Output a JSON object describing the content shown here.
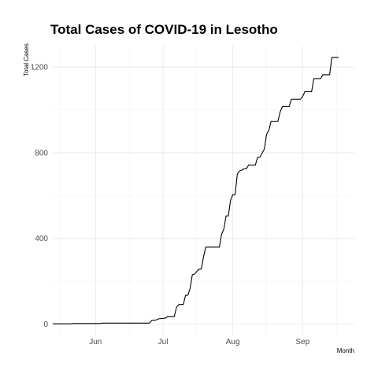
{
  "chart_data": {
    "type": "line",
    "title": "Total Cases of COVID-19 in Lesotho",
    "xlabel": "Month",
    "ylabel": "Total Cases",
    "grid": true,
    "legend": "none",
    "x_range": [
      "2020-05-13",
      "2020-09-24"
    ],
    "ylim": [
      -50,
      1300
    ],
    "y_ticks": [
      0,
      400,
      800,
      1200
    ],
    "x_ticks": [
      {
        "date": "2020-06-01",
        "label": "Jun"
      },
      {
        "date": "2020-07-01",
        "label": "Jul"
      },
      {
        "date": "2020-08-01",
        "label": "Aug"
      },
      {
        "date": "2020-09-01",
        "label": "Sep"
      }
    ],
    "x_minor_ticks": [
      "2020-05-16",
      "2020-06-16",
      "2020-07-16",
      "2020-08-16",
      "2020-09-16"
    ],
    "y_minor_ticks": [
      200,
      600,
      1000
    ],
    "series": [
      {
        "color": "#000000",
        "step": true,
        "points": [
          [
            "2020-05-13",
            1
          ],
          [
            "2020-05-21",
            1
          ],
          [
            "2020-05-22",
            2
          ],
          [
            "2020-06-03",
            2
          ],
          [
            "2020-06-04",
            4
          ],
          [
            "2020-06-25",
            4
          ],
          [
            "2020-06-26",
            17
          ],
          [
            "2020-06-28",
            19
          ],
          [
            "2020-06-29",
            24
          ],
          [
            "2020-07-02",
            27
          ],
          [
            "2020-07-03",
            35
          ],
          [
            "2020-07-06",
            35
          ],
          [
            "2020-07-07",
            79
          ],
          [
            "2020-07-08",
            91
          ],
          [
            "2020-07-10",
            91
          ],
          [
            "2020-07-11",
            134
          ],
          [
            "2020-07-12",
            134
          ],
          [
            "2020-07-13",
            165
          ],
          [
            "2020-07-14",
            230
          ],
          [
            "2020-07-15",
            233
          ],
          [
            "2020-07-16",
            245
          ],
          [
            "2020-07-17",
            256
          ],
          [
            "2020-07-18",
            256
          ],
          [
            "2020-07-19",
            315
          ],
          [
            "2020-07-20",
            359
          ],
          [
            "2020-07-21",
            359
          ],
          [
            "2020-07-26",
            359
          ],
          [
            "2020-07-27",
            419
          ],
          [
            "2020-07-28",
            443
          ],
          [
            "2020-07-29",
            505
          ],
          [
            "2020-07-30",
            505
          ],
          [
            "2020-07-31",
            578
          ],
          [
            "2020-08-01",
            604
          ],
          [
            "2020-08-02",
            604
          ],
          [
            "2020-08-03",
            701
          ],
          [
            "2020-08-04",
            715
          ],
          [
            "2020-08-05",
            719
          ],
          [
            "2020-08-06",
            725
          ],
          [
            "2020-08-07",
            725
          ],
          [
            "2020-08-08",
            742
          ],
          [
            "2020-08-11",
            742
          ],
          [
            "2020-08-12",
            779
          ],
          [
            "2020-08-13",
            779
          ],
          [
            "2020-08-14",
            798
          ],
          [
            "2020-08-15",
            817
          ],
          [
            "2020-08-16",
            886
          ],
          [
            "2020-08-17",
            905
          ],
          [
            "2020-08-18",
            946
          ],
          [
            "2020-08-21",
            946
          ],
          [
            "2020-08-22",
            990
          ],
          [
            "2020-08-23",
            1015
          ],
          [
            "2020-08-26",
            1015
          ],
          [
            "2020-08-27",
            1049
          ],
          [
            "2020-08-31",
            1049
          ],
          [
            "2020-09-01",
            1062
          ],
          [
            "2020-09-02",
            1085
          ],
          [
            "2020-09-05",
            1085
          ],
          [
            "2020-09-06",
            1146
          ],
          [
            "2020-09-09",
            1146
          ],
          [
            "2020-09-10",
            1164
          ],
          [
            "2020-09-13",
            1164
          ],
          [
            "2020-09-14",
            1245
          ],
          [
            "2020-09-17",
            1245
          ]
        ]
      }
    ]
  }
}
